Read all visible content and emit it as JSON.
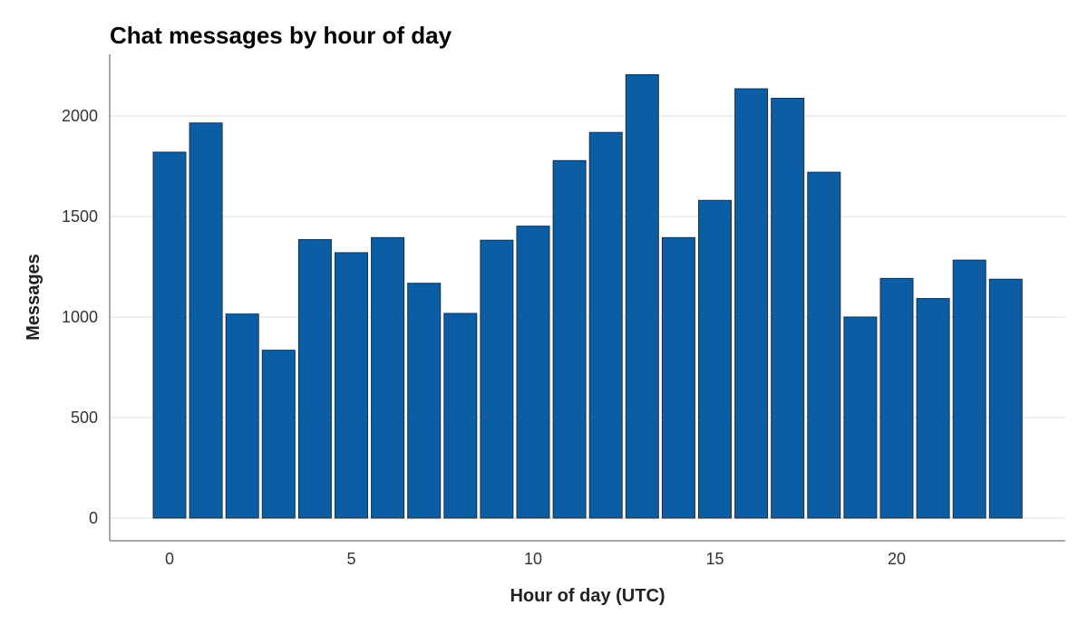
{
  "chart_data": {
    "type": "bar",
    "title": "Chat messages by hour of day",
    "xlabel": "Hour of day (UTC)",
    "ylabel": "Messages",
    "categories": [
      0,
      1,
      2,
      3,
      4,
      5,
      6,
      7,
      8,
      9,
      10,
      11,
      12,
      13,
      14,
      15,
      16,
      17,
      18,
      19,
      20,
      21,
      22,
      23
    ],
    "values": [
      1820,
      1965,
      1015,
      835,
      1385,
      1320,
      1395,
      1168,
      1018,
      1382,
      1452,
      1778,
      1918,
      2205,
      1395,
      1580,
      2135,
      2088,
      1720,
      1000,
      1192,
      1092,
      1283,
      1188
    ],
    "xticks": [
      0,
      5,
      10,
      15,
      20
    ],
    "yticks": [
      0,
      500,
      1000,
      1500,
      2000
    ],
    "ylim": [
      -120,
      2330
    ],
    "grid": true,
    "bar_color": "#0b5ea4"
  }
}
